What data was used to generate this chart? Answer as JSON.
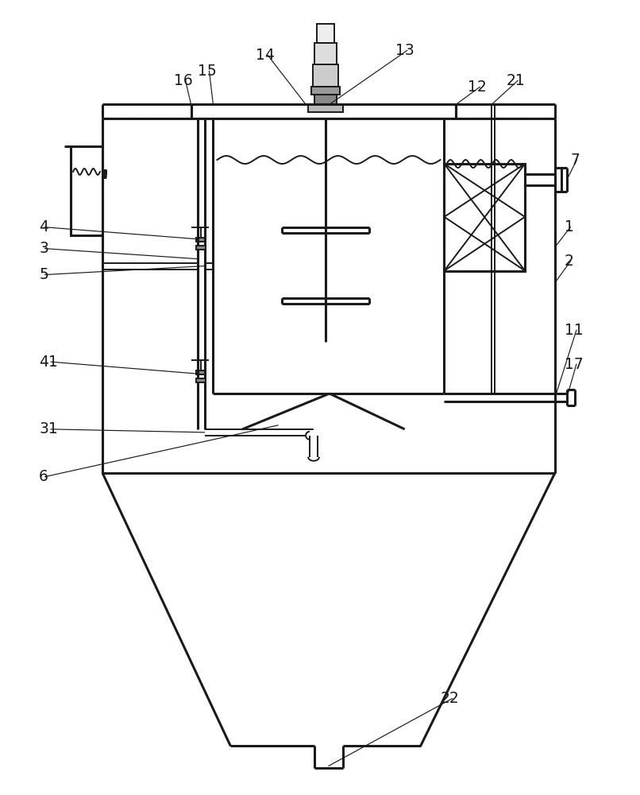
{
  "bg_color": "#ffffff",
  "line_color": "#1a1a1a",
  "lw": 1.4,
  "tlw": 2.2,
  "font_size": 13.5
}
